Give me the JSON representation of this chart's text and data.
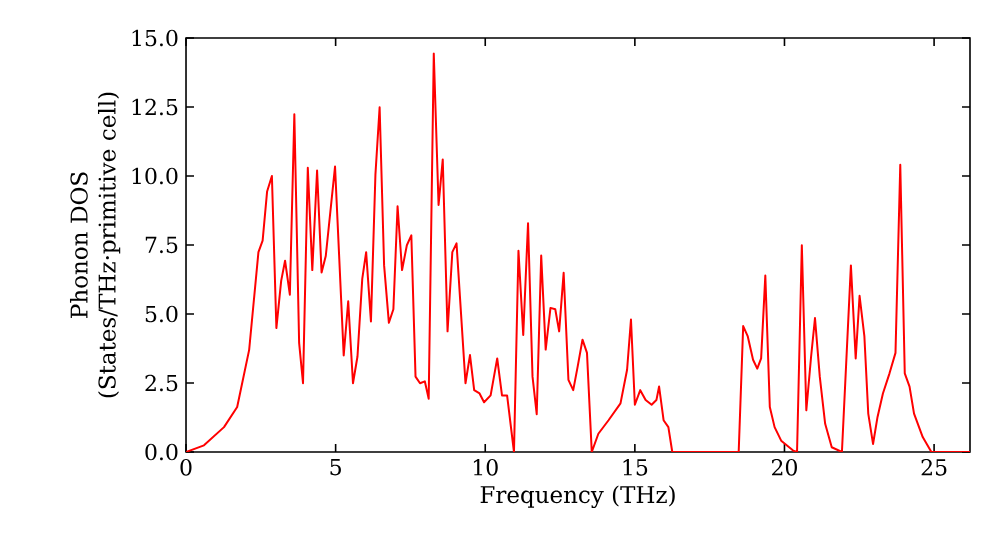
{
  "chart_data": {
    "type": "line",
    "xlabel": "Frequency (THz)",
    "ylabel": "Phonon DOS (States/THz·primitive cell)",
    "xlim": [
      0,
      26.2
    ],
    "ylim": [
      0,
      15
    ],
    "xticks": [
      0,
      5,
      10,
      15,
      20,
      25
    ],
    "yticks": [
      {
        "value": 0,
        "label": "0.0"
      },
      {
        "value": 2.5,
        "label": "2.5"
      },
      {
        "value": 5,
        "label": "5.0"
      },
      {
        "value": 7.5,
        "label": "7.5"
      },
      {
        "value": 10,
        "label": "10.0"
      },
      {
        "value": 12.5,
        "label": "12.5"
      },
      {
        "value": 15,
        "label": "15.0"
      }
    ],
    "grid": false,
    "marker": "none",
    "line_style": "solid",
    "x": [
      0,
      0.6,
      1.27,
      1.71,
      2.11,
      2.42,
      2.56,
      2.71,
      2.87,
      3.02,
      3.18,
      3.31,
      3.47,
      3.62,
      3.78,
      3.91,
      4.07,
      4.22,
      4.38,
      4.53,
      4.67,
      4.98,
      5.27,
      5.42,
      5.58,
      5.73,
      5.89,
      6.02,
      6.18,
      6.33,
      6.47,
      6.62,
      6.78,
      6.93,
      7.07,
      7.22,
      7.38,
      7.53,
      7.67,
      7.82,
      7.98,
      8.11,
      8.28,
      8.44,
      8.58,
      8.74,
      8.9,
      9.04,
      9.34,
      9.49,
      9.63,
      9.81,
      9.96,
      10.18,
      10.4,
      10.56,
      10.73,
      10.96,
      11.11,
      11.27,
      11.43,
      11.58,
      11.72,
      11.87,
      12.02,
      12.18,
      12.34,
      12.47,
      12.62,
      12.78,
      12.94,
      13.09,
      13.25,
      13.4,
      13.56,
      13.78,
      14.12,
      14.52,
      14.74,
      14.87,
      15.0,
      15.18,
      15.36,
      15.56,
      15.72,
      15.81,
      15.96,
      16.12,
      16.25,
      18.47,
      18.62,
      18.77,
      18.95,
      19.09,
      19.22,
      19.36,
      19.51,
      19.67,
      19.89,
      20.29,
      20.42,
      20.58,
      20.73,
      20.89,
      21.02,
      21.18,
      21.36,
      21.58,
      21.92,
      22.22,
      22.38,
      22.51,
      22.67,
      22.8,
      22.96,
      23.11,
      23.29,
      23.51,
      23.71,
      23.87,
      24.02,
      24.18,
      24.33,
      24.62,
      24.91,
      26.2
    ],
    "series": [
      {
        "color": "#ff0000",
        "values": [
          0,
          0.24,
          0.9,
          1.63,
          3.7,
          7.24,
          7.66,
          9.44,
          10,
          4.49,
          6.2,
          6.93,
          5.7,
          12.24,
          3.95,
          2.49,
          10.3,
          6.59,
          10.2,
          6.5,
          7.1,
          10.34,
          3.5,
          5.46,
          2.49,
          3.46,
          6.27,
          7.24,
          4.73,
          10.05,
          12.49,
          6.76,
          4.68,
          5.17,
          8.9,
          6.59,
          7.49,
          7.85,
          2.73,
          2.49,
          2.56,
          1.93,
          14.44,
          8.95,
          10.6,
          4.37,
          7.24,
          7.56,
          2.49,
          3.51,
          2.24,
          2.12,
          1.8,
          2.05,
          3.39,
          2.05,
          2.05,
          0,
          7.29,
          4.24,
          8.29,
          2.73,
          1.37,
          7.12,
          3.71,
          5.22,
          5.17,
          4.37,
          6.49,
          2.61,
          2.24,
          3.1,
          4.07,
          3.59,
          0,
          0.66,
          1.15,
          1.76,
          2.98,
          4.8,
          1.71,
          2.24,
          1.88,
          1.71,
          1.88,
          2.37,
          1.15,
          0.9,
          0,
          0,
          4.56,
          4.2,
          3.34,
          3.02,
          3.39,
          6.39,
          1.63,
          0.9,
          0.41,
          0.05,
          0,
          7.49,
          1.51,
          3.46,
          4.85,
          2.73,
          1.02,
          0.17,
          0,
          6.76,
          3.39,
          5.66,
          4.2,
          1.39,
          0.29,
          1.27,
          2.12,
          2.85,
          3.59,
          10.41,
          2.85,
          2.37,
          1.39,
          0.54,
          0,
          0
        ]
      }
    ]
  }
}
